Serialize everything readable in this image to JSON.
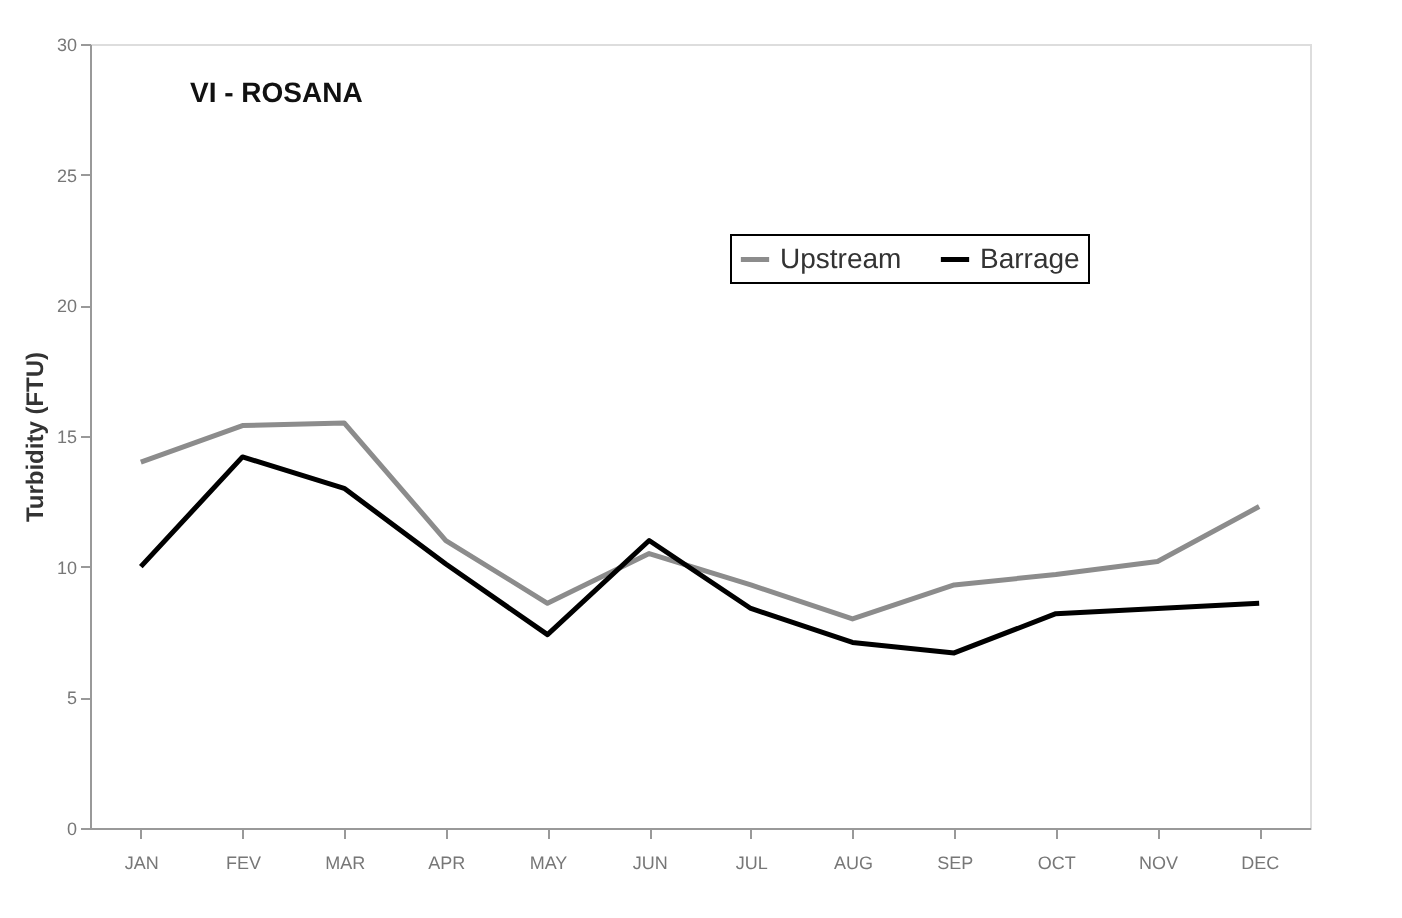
{
  "chart_data": {
    "type": "line",
    "title": "VI - ROSANA",
    "ylabel": "Turbidity (FTU)",
    "categories": [
      "JAN",
      "FEV",
      "MAR",
      "APR",
      "MAY",
      "JUN",
      "JUL",
      "AUG",
      "SEP",
      "OCT",
      "NOV",
      "DEC"
    ],
    "series": [
      {
        "name": "Upstream",
        "color": "#8c8c8c",
        "values": [
          14.0,
          15.4,
          15.5,
          11.0,
          8.6,
          10.5,
          9.3,
          8.0,
          9.3,
          9.7,
          10.2,
          12.3
        ]
      },
      {
        "name": "Barrage",
        "color": "#000000",
        "values": [
          10.0,
          14.2,
          13.0,
          10.1,
          7.4,
          11.0,
          8.4,
          7.1,
          6.7,
          8.2,
          8.4,
          8.6
        ]
      }
    ],
    "ylim": [
      0,
      30
    ],
    "yticks": [
      0,
      5,
      10,
      15,
      20,
      25,
      30
    ],
    "grid": false,
    "legend": "top right",
    "marker": "none",
    "line_style": "solid"
  }
}
